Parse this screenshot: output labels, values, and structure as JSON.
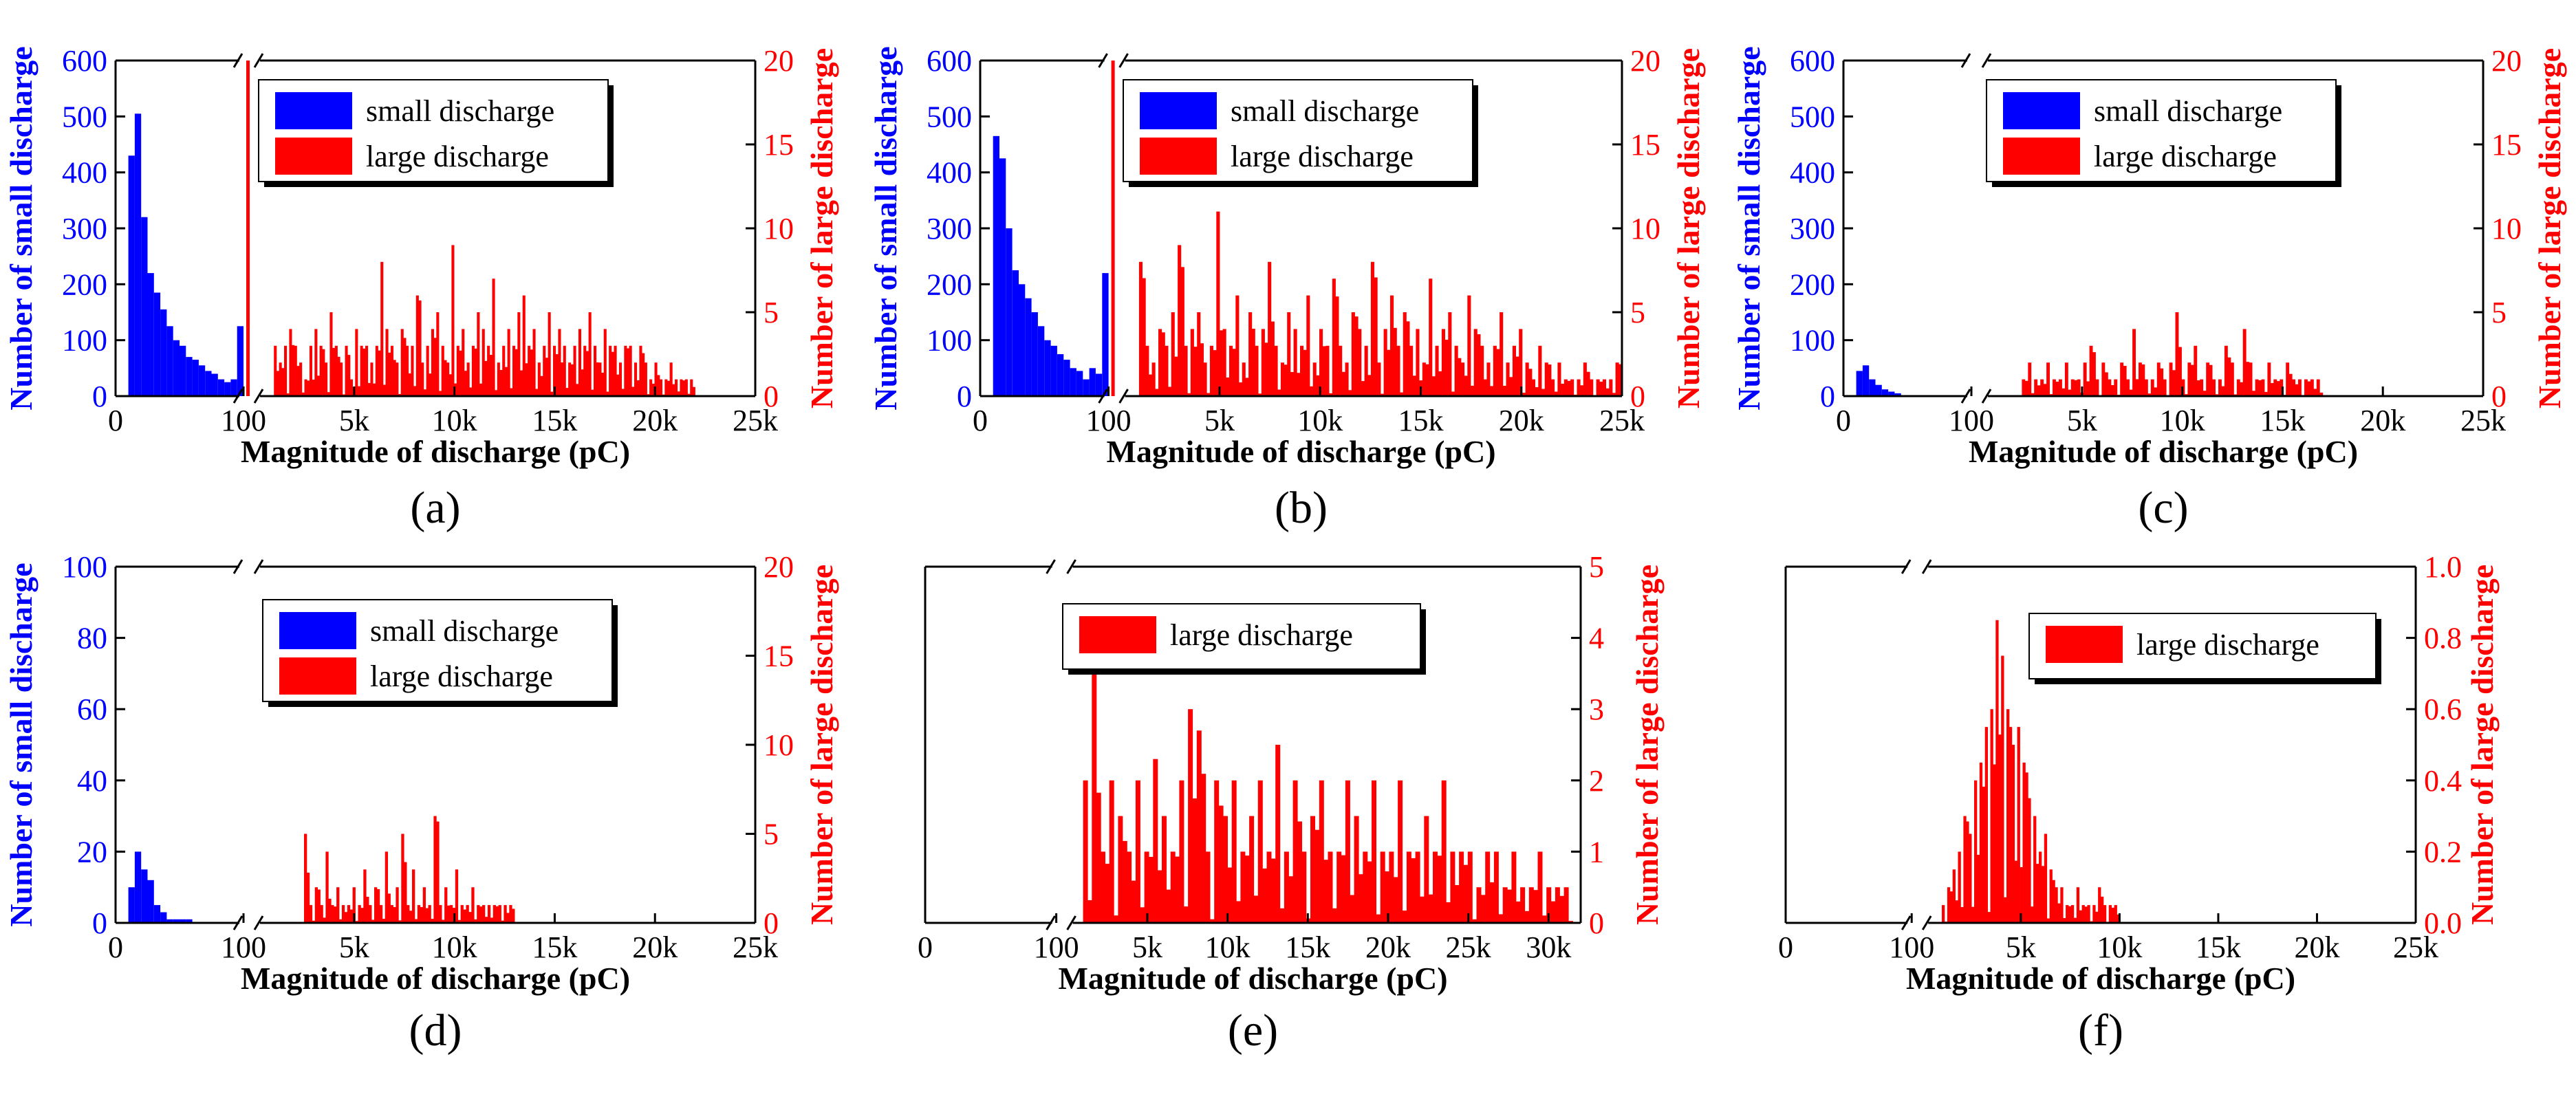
{
  "figure": {
    "xlabel": "Magnitude of discharge (pC)",
    "colors": {
      "small": "#0000ff",
      "large": "#ff0000",
      "axis": "#000000"
    },
    "panels": [
      {
        "label": "(a)",
        "ylabel_left": "Number of small discharge",
        "ylabel_right": "Number of large discharge",
        "left_ticks": [
          "0",
          "100",
          "200",
          "300",
          "400",
          "500",
          "600"
        ],
        "right_ticks": [
          "0",
          "5",
          "10",
          "15",
          "20"
        ],
        "x_ticks": [
          "0",
          "100",
          "5k",
          "10k",
          "15k",
          "20k",
          "25k"
        ],
        "legend": [
          "small discharge",
          "large discharge"
        ]
      },
      {
        "label": "(b)",
        "ylabel_left": "Number of small discharge",
        "ylabel_right": "Number of large discharge",
        "left_ticks": [
          "0",
          "100",
          "200",
          "300",
          "400",
          "500",
          "600"
        ],
        "right_ticks": [
          "0",
          "5",
          "10",
          "15",
          "20"
        ],
        "x_ticks": [
          "0",
          "100",
          "5k",
          "10k",
          "15k",
          "20k",
          "25k"
        ],
        "legend": [
          "small discharge",
          "large discharge"
        ]
      },
      {
        "label": "(c)",
        "ylabel_left": "Number of small discharge",
        "ylabel_right": "Number of large discharge",
        "left_ticks": [
          "0",
          "100",
          "200",
          "300",
          "400",
          "500",
          "600"
        ],
        "right_ticks": [
          "0",
          "5",
          "10",
          "15",
          "20"
        ],
        "x_ticks": [
          "0",
          "100",
          "5k",
          "10k",
          "15k",
          "20k",
          "25k"
        ],
        "legend": [
          "small discharge",
          "large discharge"
        ]
      },
      {
        "label": "(d)",
        "ylabel_left": "Number of small discharge",
        "ylabel_right": "Number of large discharge",
        "left_ticks": [
          "0",
          "20",
          "40",
          "60",
          "80",
          "100"
        ],
        "right_ticks": [
          "0",
          "5",
          "10",
          "15",
          "20"
        ],
        "x_ticks": [
          "0",
          "100",
          "5k",
          "10k",
          "15k",
          "20k",
          "25k"
        ],
        "legend": [
          "small discharge",
          "large discharge"
        ]
      },
      {
        "label": "(e)",
        "ylabel_left": "",
        "ylabel_right": "Number of large discharge",
        "left_ticks": [],
        "right_ticks": [
          "0",
          "1",
          "2",
          "3",
          "4",
          "5"
        ],
        "x_ticks": [
          "0",
          "100",
          "5k",
          "10k",
          "15k",
          "20k",
          "25k",
          "30k"
        ],
        "legend": [
          "large discharge"
        ]
      },
      {
        "label": "(f)",
        "ylabel_left": "",
        "ylabel_right": "Number of large discharge",
        "left_ticks": [],
        "right_ticks": [
          "0.0",
          "0.2",
          "0.4",
          "0.6",
          "0.8",
          "1.0"
        ],
        "x_ticks": [
          "0",
          "100",
          "5k",
          "10k",
          "15k",
          "20k",
          "25k"
        ],
        "legend": [
          "large discharge"
        ]
      }
    ]
  },
  "chart_data": [
    {
      "panel": "(a)",
      "type": "bar",
      "xlabel": "Magnitude of discharge (pC)",
      "ylabel_left": "Number of small discharge",
      "ylabel_right": "Number of large discharge",
      "x_axis": {
        "segments": [
          [
            0,
            100
          ],
          [
            100,
            25000
          ]
        ],
        "break_after": 100
      },
      "ylim_left": [
        0,
        600
      ],
      "ylim_right": [
        0,
        20
      ],
      "legend_placement": "top-right",
      "series": [
        {
          "name": "small discharge",
          "axis": "left",
          "x": [
            15,
            20,
            25,
            30,
            35,
            40,
            45,
            50,
            55,
            60,
            65,
            70,
            75,
            80,
            85,
            90,
            95,
            100
          ],
          "values": [
            430,
            505,
            320,
            220,
            185,
            155,
            125,
            100,
            90,
            70,
            65,
            55,
            45,
            40,
            30,
            25,
            30,
            125
          ]
        },
        {
          "name": "large discharge",
          "axis": "right",
          "x_range": [
            1000,
            22000
          ],
          "bin": 100,
          "spike_at_100": 20,
          "values_sampled": [
            3,
            2,
            3,
            4,
            3,
            2,
            1,
            3,
            4,
            3,
            2,
            5,
            3,
            2,
            3,
            1,
            4,
            3,
            3,
            2,
            3,
            8,
            4,
            3,
            2,
            4,
            3,
            3,
            6,
            2,
            3,
            4,
            5,
            3,
            2,
            9,
            3,
            4,
            2,
            3,
            5,
            4,
            3,
            7,
            2,
            3,
            4,
            3,
            5,
            6,
            3,
            4,
            2,
            3,
            5,
            3,
            4,
            3,
            2,
            3,
            4,
            3,
            5,
            3,
            2,
            4,
            3,
            3,
            2,
            3,
            3,
            2,
            3,
            2,
            1,
            2,
            1,
            1,
            2,
            1,
            1,
            1,
            1
          ]
        }
      ]
    },
    {
      "panel": "(b)",
      "type": "bar",
      "xlabel": "Magnitude of discharge (pC)",
      "ylabel_left": "Number of small discharge",
      "ylabel_right": "Number of large discharge",
      "x_axis": {
        "segments": [
          [
            0,
            100
          ],
          [
            100,
            25000
          ]
        ],
        "break_after": 100
      },
      "ylim_left": [
        0,
        600
      ],
      "ylim_right": [
        0,
        20
      ],
      "legend_placement": "top-right",
      "series": [
        {
          "name": "small discharge",
          "axis": "left",
          "x": [
            15,
            20,
            25,
            30,
            35,
            40,
            45,
            50,
            55,
            60,
            65,
            70,
            75,
            80,
            85,
            90,
            95,
            100
          ],
          "values": [
            465,
            425,
            300,
            225,
            200,
            175,
            150,
            125,
            100,
            90,
            75,
            65,
            50,
            45,
            30,
            50,
            40,
            220
          ]
        },
        {
          "name": "large discharge",
          "axis": "right",
          "x_range": [
            1000,
            25000
          ],
          "bin": 100,
          "spike_at_100": 20,
          "values_sampled": [
            8,
            3,
            2,
            4,
            3,
            5,
            9,
            3,
            4,
            5,
            2,
            3,
            11,
            4,
            3,
            6,
            2,
            5,
            3,
            4,
            8,
            3,
            2,
            5,
            4,
            3,
            6,
            2,
            4,
            3,
            7,
            3,
            2,
            5,
            4,
            3,
            8,
            2,
            4,
            6,
            3,
            5,
            3,
            4,
            2,
            7,
            3,
            4,
            5,
            3,
            2,
            6,
            4,
            3,
            2,
            3,
            5,
            2,
            3,
            4,
            2,
            1,
            3,
            2,
            1,
            2,
            1,
            1,
            1,
            2,
            1,
            1,
            1,
            1,
            2
          ]
        }
      ]
    },
    {
      "panel": "(c)",
      "type": "bar",
      "xlabel": "Magnitude of discharge (pC)",
      "ylabel_left": "Number of small discharge",
      "ylabel_right": "Number of large discharge",
      "x_axis": {
        "segments": [
          [
            0,
            100
          ],
          [
            100,
            25000
          ]
        ],
        "break_after": 100
      },
      "ylim_left": [
        0,
        600
      ],
      "ylim_right": [
        0,
        20
      ],
      "legend_placement": "top-right",
      "series": [
        {
          "name": "small discharge",
          "axis": "left",
          "x": [
            15,
            20,
            25,
            30,
            35,
            40,
            45
          ],
          "values": [
            45,
            55,
            30,
            20,
            12,
            8,
            5
          ]
        },
        {
          "name": "large discharge",
          "axis": "right",
          "x_range": [
            2000,
            17000
          ],
          "bin": 100,
          "values_sampled": [
            1,
            2,
            1,
            1,
            2,
            1,
            1,
            2,
            1,
            1,
            2,
            3,
            1,
            2,
            1,
            1,
            2,
            1,
            4,
            2,
            1,
            1,
            2,
            1,
            2,
            5,
            1,
            2,
            3,
            1,
            2,
            1,
            1,
            3,
            2,
            1,
            4,
            2,
            1,
            1,
            2,
            1,
            1,
            2,
            1,
            1,
            1,
            1,
            1
          ]
        }
      ]
    },
    {
      "panel": "(d)",
      "type": "bar",
      "xlabel": "Magnitude of discharge (pC)",
      "ylabel_left": "Number of small discharge",
      "ylabel_right": "Number of large discharge",
      "x_axis": {
        "segments": [
          [
            0,
            100
          ],
          [
            100,
            25000
          ]
        ],
        "break_after": 100
      },
      "ylim_left": [
        0,
        100
      ],
      "ylim_right": [
        0,
        20
      ],
      "legend_placement": "top-right",
      "series": [
        {
          "name": "small discharge",
          "axis": "left",
          "x": [
            15,
            20,
            25,
            30,
            35,
            40,
            45,
            50,
            55,
            60
          ],
          "values": [
            10,
            20,
            15,
            12,
            5,
            3,
            1,
            1,
            1,
            1
          ]
        },
        {
          "name": "large discharge",
          "axis": "right",
          "x_range": [
            2500,
            13000
          ],
          "bin": 100,
          "values_sampled": [
            5,
            1,
            2,
            1,
            4,
            1,
            2,
            1,
            1,
            2,
            1,
            3,
            1,
            2,
            1,
            4,
            1,
            2,
            5,
            1,
            3,
            1,
            2,
            1,
            6,
            1,
            2,
            1,
            3,
            1,
            1,
            2,
            1,
            1,
            1,
            1,
            1,
            1,
            1
          ]
        }
      ]
    },
    {
      "panel": "(e)",
      "type": "bar",
      "xlabel": "Magnitude of discharge (pC)",
      "ylabel_right": "Number of large discharge",
      "x_axis": {
        "segments": [
          [
            0,
            100
          ],
          [
            100,
            32000
          ]
        ],
        "break_after": 100
      },
      "ylim_right": [
        0,
        5
      ],
      "legend_placement": "top",
      "series": [
        {
          "name": "large discharge",
          "axis": "right",
          "x_range": [
            1000,
            31500
          ],
          "bin": 100,
          "values_sampled": [
            2,
            3.6,
            1,
            2,
            1.5,
            1,
            2,
            1,
            2.3,
            1.5,
            1,
            2,
            3,
            2.7,
            1,
            2,
            1.5,
            2,
            1,
            1.5,
            2,
            1,
            2.5,
            1,
            2,
            1,
            1.5,
            2,
            1,
            1,
            2,
            1.5,
            1,
            2,
            1,
            1,
            2,
            1,
            1,
            1.5,
            1,
            2,
            1,
            1,
            1,
            0.5,
            1,
            1,
            0.5,
            1,
            0.5,
            0.5,
            1,
            0.5,
            0.5,
            0.5
          ]
        }
      ]
    },
    {
      "panel": "(f)",
      "type": "bar",
      "xlabel": "Magnitude of discharge (pC)",
      "ylabel_right": "Number of large discharge",
      "x_axis": {
        "segments": [
          [
            0,
            100
          ],
          [
            100,
            25000
          ]
        ],
        "break_after": 100
      },
      "ylim_right": [
        0,
        1.0
      ],
      "legend_placement": "top",
      "series": [
        {
          "name": "large discharge",
          "axis": "right",
          "x_range": [
            1000,
            10000
          ],
          "bin": 100,
          "values_sampled": [
            0.05,
            0.1,
            0.15,
            0.2,
            0.3,
            0.25,
            0.4,
            0.45,
            0.55,
            0.6,
            0.85,
            0.75,
            0.6,
            0.5,
            0.55,
            0.45,
            0.35,
            0.3,
            0.2,
            0.25,
            0.15,
            0.1,
            0.1,
            0.05,
            0.05,
            0.1,
            0.05,
            0.05,
            0.05,
            0.1,
            0.05,
            0.05,
            0.05
          ]
        }
      ]
    }
  ]
}
